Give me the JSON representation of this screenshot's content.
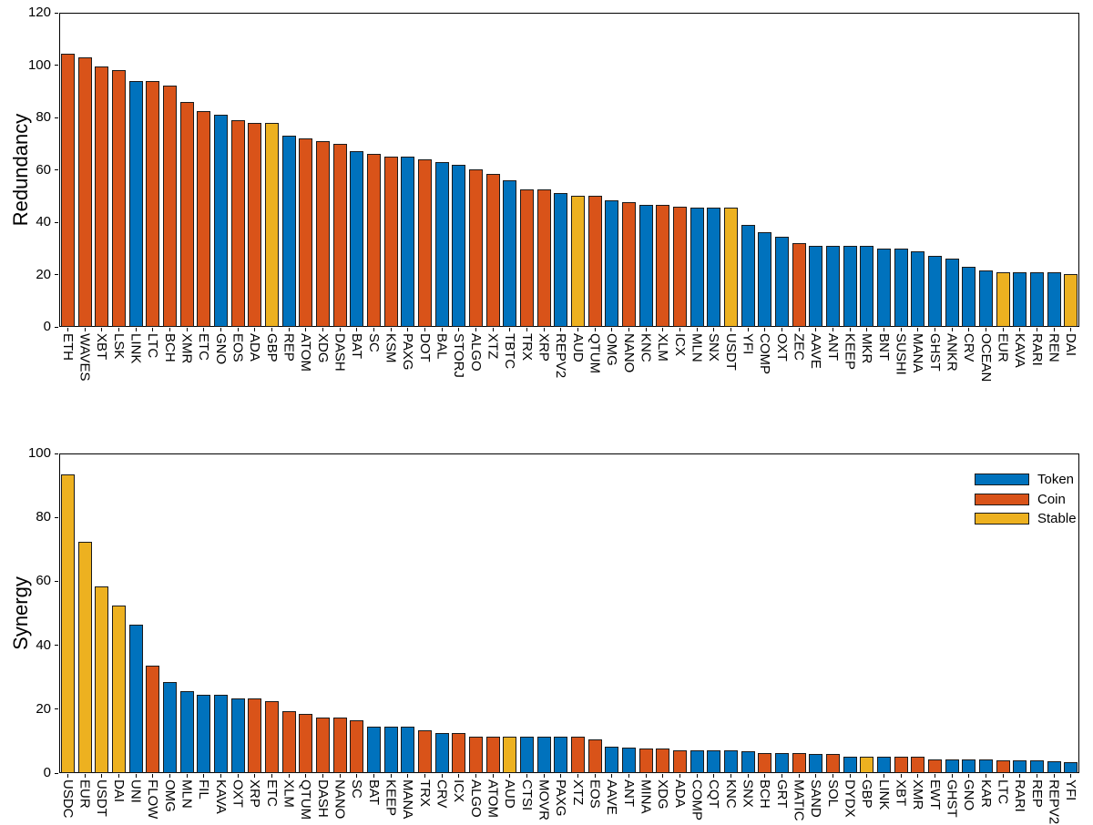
{
  "page": {
    "background": "#ffffff"
  },
  "palette": {
    "token": "#0072BD",
    "coin": "#D95319",
    "stable": "#EDB120",
    "bar_edge": "#1a1a1a",
    "axis": "#000000"
  },
  "legend": {
    "position": "top-right-of-second-chart",
    "frame": false,
    "entries": [
      {
        "label": "Token",
        "class": "token"
      },
      {
        "label": "Coin",
        "class": "coin"
      },
      {
        "label": "Stable",
        "class": "stable"
      }
    ]
  },
  "chart_data": [
    {
      "type": "bar",
      "title": "",
      "xlabel": "",
      "ylabel": "Redundancy",
      "ylim": [
        0,
        120
      ],
      "yticks": [
        0,
        20,
        40,
        60,
        80,
        100,
        120
      ],
      "grid": false,
      "box": true,
      "xticklabel_rotation": 90,
      "categories": [
        "ETH",
        "WAVES",
        "XBT",
        "LSK",
        "LINK",
        "LTC",
        "BCH",
        "XMR",
        "ETC",
        "GNO",
        "EOS",
        "ADA",
        "GBP",
        "REP",
        "ATOM",
        "XDG",
        "DASH",
        "BAT",
        "SC",
        "KSM",
        "PAXG",
        "DOT",
        "BAL",
        "STORJ",
        "ALGO",
        "XTZ",
        "TBTC",
        "TRX",
        "XRP",
        "REPV2",
        "AUD",
        "QTUM",
        "OMG",
        "NANO",
        "KNC",
        "XLM",
        "ICX",
        "MLN",
        "SNX",
        "USDT",
        "YFI",
        "COMP",
        "OXT",
        "ZEC",
        "AAVE",
        "ANT",
        "KEEP",
        "MKR",
        "BNT",
        "SUSHI",
        "MANA",
        "GHST",
        "ANKR",
        "CRV",
        "OCEAN",
        "EUR",
        "KAVA",
        "RARI",
        "REN",
        "DAI"
      ],
      "values": [
        104.5,
        103,
        99.5,
        98,
        94,
        94,
        92,
        86,
        82.5,
        81,
        79,
        78,
        78,
        73,
        72,
        71,
        70,
        67,
        66,
        65,
        65,
        64,
        63,
        62,
        60,
        58.5,
        56,
        52.5,
        52.5,
        51,
        50,
        50,
        48.5,
        47.5,
        46.5,
        46.5,
        46,
        45.5,
        45.5,
        45.5,
        39,
        36,
        34.5,
        32,
        31,
        31,
        31,
        31,
        30,
        30,
        29,
        27,
        26,
        23,
        21.5,
        21,
        21,
        21,
        21,
        20
      ],
      "classes": [
        "coin",
        "coin",
        "coin",
        "coin",
        "token",
        "coin",
        "coin",
        "coin",
        "coin",
        "token",
        "coin",
        "coin",
        "stable",
        "token",
        "coin",
        "coin",
        "coin",
        "token",
        "coin",
        "coin",
        "token",
        "coin",
        "token",
        "token",
        "coin",
        "coin",
        "token",
        "coin",
        "coin",
        "token",
        "stable",
        "coin",
        "token",
        "coin",
        "token",
        "coin",
        "coin",
        "token",
        "token",
        "stable",
        "token",
        "token",
        "token",
        "coin",
        "token",
        "token",
        "token",
        "token",
        "token",
        "token",
        "token",
        "token",
        "token",
        "token",
        "token",
        "stable",
        "token",
        "token",
        "token",
        "stable"
      ]
    },
    {
      "type": "bar",
      "title": "",
      "xlabel": "",
      "ylabel": "Synergy",
      "ylim": [
        0,
        100
      ],
      "yticks": [
        0,
        20,
        40,
        60,
        80,
        100
      ],
      "grid": false,
      "box": true,
      "xticklabel_rotation": 90,
      "legend_position": "top-right",
      "categories": [
        "USDC",
        "EUR",
        "USDT",
        "DAI",
        "UNI",
        "FLOW",
        "OMG",
        "MLN",
        "FIL",
        "KAVA",
        "OXT",
        "XRP",
        "ETC",
        "XLM",
        "QTUM",
        "DASH",
        "NANO",
        "SC",
        "BAT",
        "KEEP",
        "MANA",
        "TRX",
        "CRV",
        "ICX",
        "ALGO",
        "ATOM",
        "AUD",
        "CTSI",
        "MOVR",
        "PAXG",
        "XTZ",
        "EOS",
        "AAVE",
        "ANT",
        "MINA",
        "XDG",
        "ADA",
        "COMP",
        "CQT",
        "KNC",
        "SNX",
        "BCH",
        "GRT",
        "MATIC",
        "SAND",
        "SOL",
        "DYDX",
        "GBP",
        "LINK",
        "XBT",
        "XMR",
        "EWT",
        "GHST",
        "GNO",
        "KAR",
        "LTC",
        "RARI",
        "REP",
        "REPV2",
        "YFI"
      ],
      "values": [
        93.5,
        72.5,
        58.5,
        52.5,
        46.5,
        33.5,
        28.5,
        25.5,
        24.5,
        24.5,
        23.5,
        23.5,
        22.5,
        19.5,
        18.5,
        17.5,
        17.5,
        16.5,
        14.5,
        14.5,
        14.5,
        13.5,
        12.5,
        12.5,
        11.5,
        11.5,
        11.5,
        11.5,
        11.5,
        11.5,
        11.5,
        10.5,
        8.2,
        8.1,
        7.8,
        7.7,
        7.1,
        7,
        7,
        7,
        6.9,
        6.4,
        6.3,
        6.2,
        6.1,
        6,
        5.2,
        5.1,
        5.1,
        5,
        5,
        4.4,
        4.3,
        4.3,
        4.2,
        4.1,
        3.9,
        3.9,
        3.8,
        3.5
      ],
      "classes": [
        "stable",
        "stable",
        "stable",
        "stable",
        "token",
        "coin",
        "token",
        "token",
        "token",
        "token",
        "token",
        "coin",
        "coin",
        "coin",
        "coin",
        "coin",
        "coin",
        "coin",
        "token",
        "token",
        "token",
        "coin",
        "token",
        "coin",
        "coin",
        "coin",
        "stable",
        "token",
        "token",
        "token",
        "coin",
        "coin",
        "token",
        "token",
        "coin",
        "coin",
        "coin",
        "token",
        "token",
        "token",
        "token",
        "coin",
        "token",
        "coin",
        "token",
        "coin",
        "token",
        "stable",
        "token",
        "coin",
        "coin",
        "coin",
        "token",
        "token",
        "token",
        "coin",
        "token",
        "token",
        "token",
        "token"
      ]
    }
  ]
}
